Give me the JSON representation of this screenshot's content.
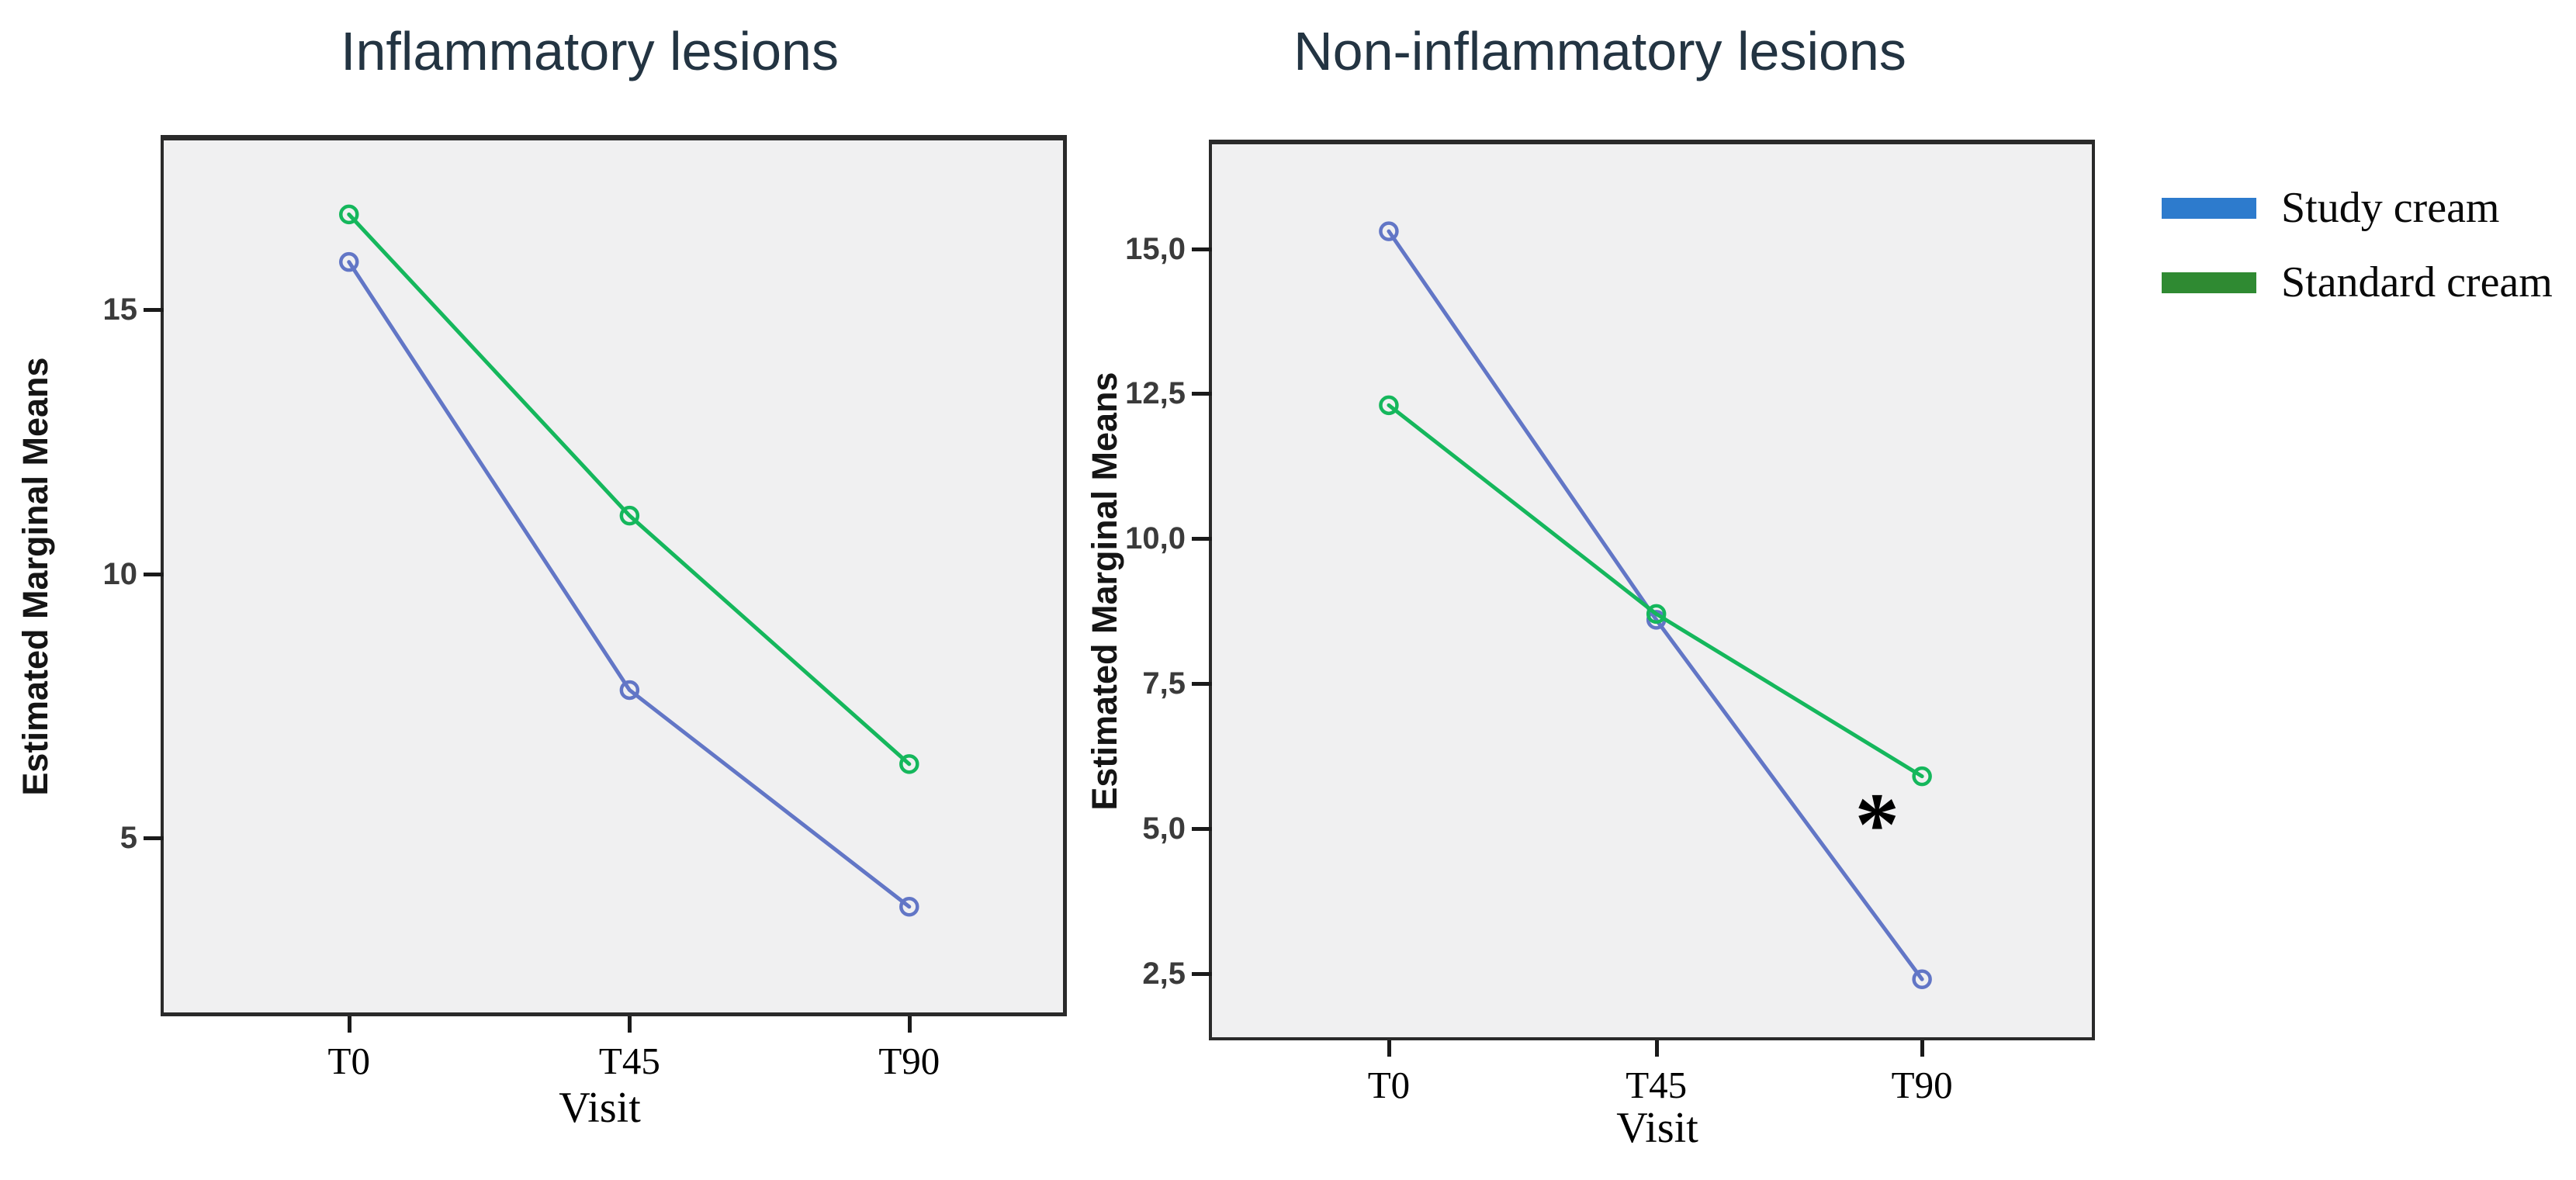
{
  "page": {
    "background": "#ffffff"
  },
  "legend": {
    "items": [
      {
        "label": "Study cream",
        "color": "#2d7bcd"
      },
      {
        "label": "Standard cream",
        "color": "#2f8a32"
      }
    ]
  },
  "annotation_note": "*",
  "chart_data": [
    {
      "type": "line",
      "title": "Inflammatory lesions",
      "xlabel": "Visit",
      "ylabel": "Estimated Marginal Means",
      "categories": [
        "T0",
        "T45",
        "T90"
      ],
      "ylim": [
        1.7,
        18.2
      ],
      "grid": false,
      "plot_background": "#f0f0f1",
      "yticks": [
        {
          "value": 15,
          "label": "15"
        },
        {
          "value": 10,
          "label": "10"
        },
        {
          "value": 5,
          "label": "5"
        }
      ],
      "series": [
        {
          "name": "Study cream",
          "color": "#6276c6",
          "marker": "open-circle",
          "values": [
            15.9,
            7.8,
            3.7
          ]
        },
        {
          "name": "Standard cream",
          "color": "#15b75c",
          "marker": "open-circle",
          "values": [
            16.8,
            11.1,
            6.4
          ]
        }
      ]
    },
    {
      "type": "line",
      "title": "Non-inflammatory lesions",
      "xlabel": "Visit",
      "ylabel": "Estimated Marginal Means",
      "categories": [
        "T0",
        "T45",
        "T90"
      ],
      "ylim": [
        1.4,
        16.8
      ],
      "grid": false,
      "plot_background": "#f0f0f1",
      "yticks": [
        {
          "value": 15,
          "label": "15,0"
        },
        {
          "value": 12.5,
          "label": "12,5"
        },
        {
          "value": 10,
          "label": "10,0"
        },
        {
          "value": 7.5,
          "label": "7,5"
        },
        {
          "value": 5,
          "label": "5,0"
        },
        {
          "value": 2.5,
          "label": "2,5"
        }
      ],
      "series": [
        {
          "name": "Study cream",
          "color": "#6276c6",
          "marker": "open-circle",
          "values": [
            15.3,
            8.6,
            2.4
          ]
        },
        {
          "name": "Standard cream",
          "color": "#15b75c",
          "marker": "open-circle",
          "values": [
            12.3,
            8.7,
            5.9
          ]
        }
      ],
      "annotations": [
        {
          "text": "*",
          "x_frac": 0.756,
          "y": 5.2
        }
      ]
    }
  ]
}
